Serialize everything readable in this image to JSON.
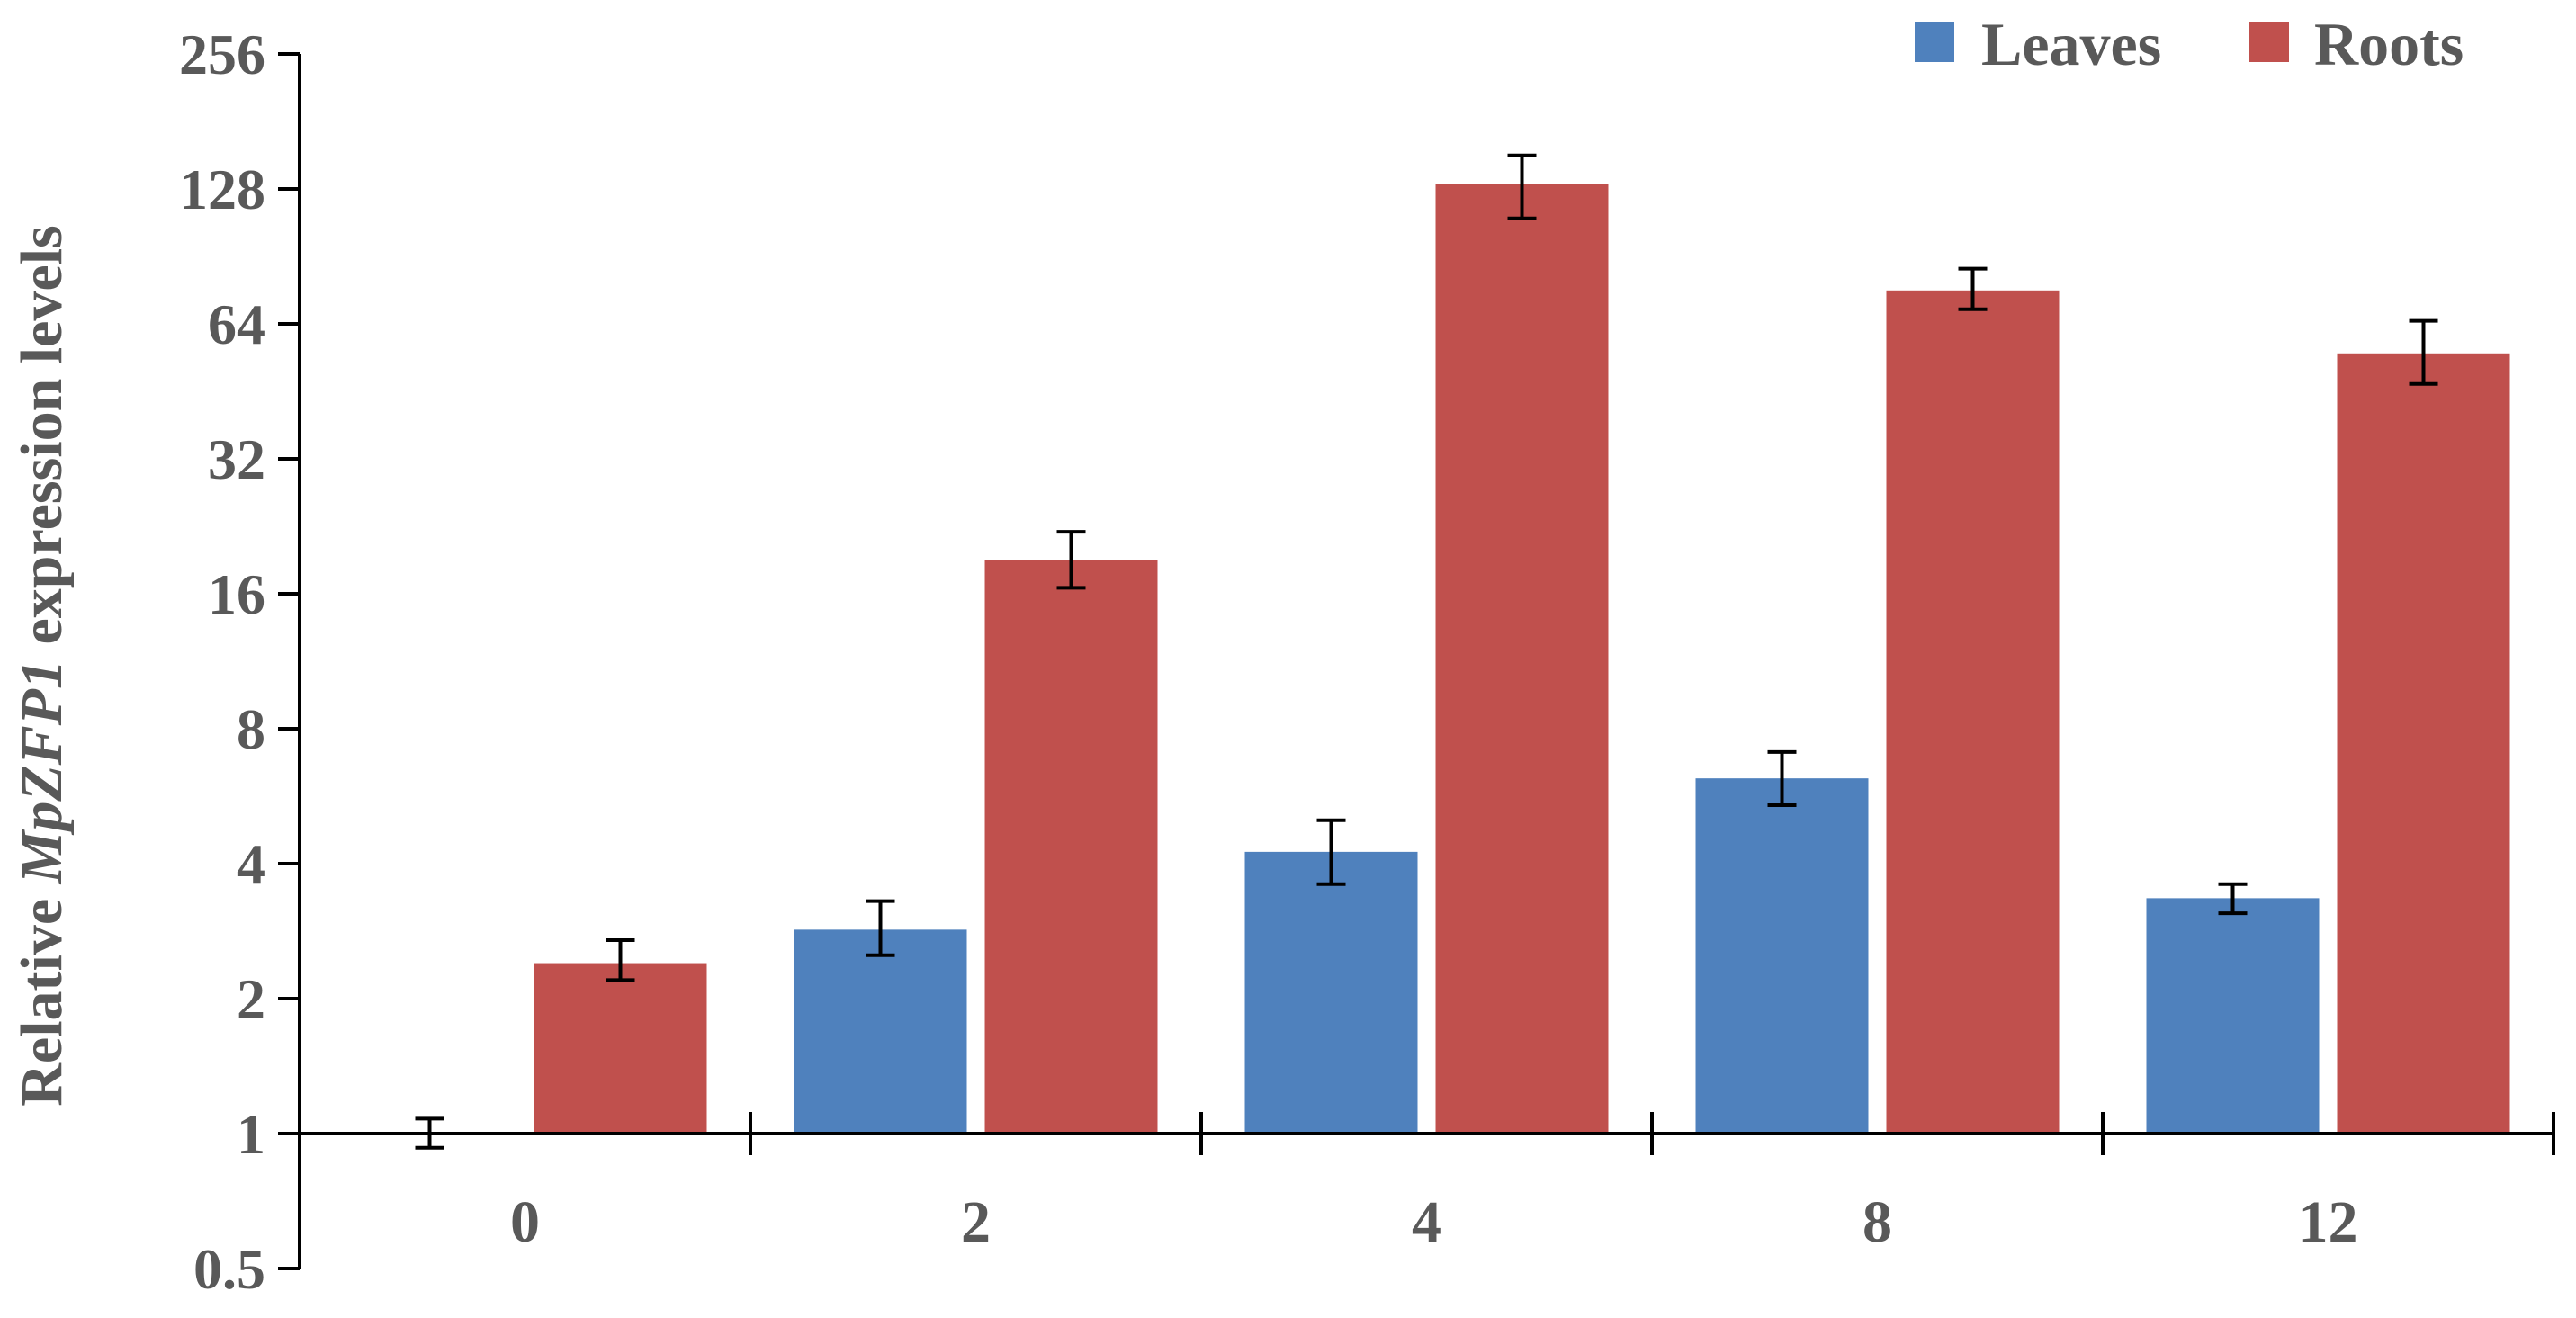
{
  "chart_data": {
    "type": "bar",
    "y_scale": "log2",
    "ylim": [
      0.5,
      256
    ],
    "yticks": [
      "0.5",
      "1",
      "2",
      "4",
      "8",
      "16",
      "32",
      "64",
      "128",
      "256"
    ],
    "ylabel_prefix": "Relative ",
    "ylabel_gene": "MpZFP1",
    "ylabel_suffix": " expression levels",
    "xlabel": "",
    "title": "",
    "categories": [
      "0",
      "2",
      "4",
      "8",
      "12"
    ],
    "baseline": 1,
    "grid": false,
    "legend_position": "top-right",
    "series": [
      {
        "name": "Leaves",
        "color": "#4F81BD",
        "values": [
          1,
          2.85,
          4.25,
          6.2,
          3.35
        ],
        "error_low": [
          0.93,
          2.5,
          3.6,
          5.4,
          3.1
        ],
        "error_high": [
          1.08,
          3.3,
          5.0,
          7.1,
          3.6
        ]
      },
      {
        "name": "Roots",
        "color": "#C0504D",
        "values": [
          2.4,
          19.0,
          131,
          76,
          55
        ],
        "error_low": [
          2.2,
          16.5,
          110,
          69,
          47
        ],
        "error_high": [
          2.7,
          22.0,
          152,
          85,
          65
        ]
      }
    ]
  }
}
